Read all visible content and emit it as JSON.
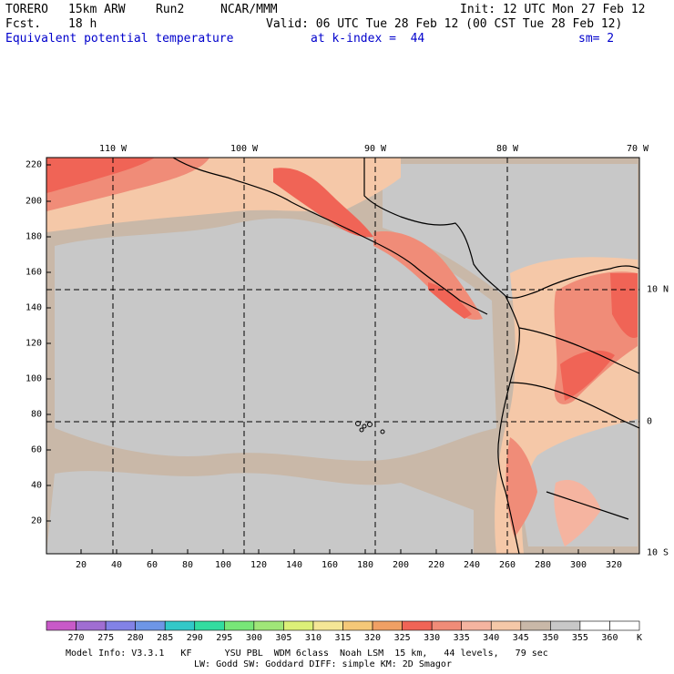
{
  "header": {
    "model_label": "TORERO",
    "resolution": "15km ARW",
    "run": "Run2",
    "org": "NCAR/MMM",
    "init": "Init: 12 UTC Mon 27 Feb 12",
    "fcst_label": "Fcst.",
    "fcst_hours": "18 h",
    "valid": "Valid: 06 UTC Tue 28 Feb 12 (00 CST Tue 28 Feb 12)",
    "field": "Equivalent potential temperature",
    "level": "at k-index =  44",
    "smoothing": "sm= 2"
  },
  "map": {
    "lon_labels": [
      "110 W",
      "100 W",
      "90 W",
      "80 W",
      "70 W"
    ],
    "lat_labels": [
      "10 N",
      "0",
      "10 S"
    ],
    "x_grid_ticks": [
      "20",
      "40",
      "60",
      "80",
      "100",
      "120",
      "140",
      "160",
      "180",
      "200",
      "220",
      "240",
      "260",
      "280",
      "300",
      "320"
    ],
    "y_grid_ticks": [
      "220",
      "200",
      "180",
      "160",
      "140",
      "120",
      "100",
      "80",
      "60",
      "40",
      "20"
    ],
    "colors": {
      "ocean_cool": "#c8c8c8",
      "ocean_warm": "#c9b8a8",
      "land_warm": "#f5c8a8",
      "hot": "#f08c78",
      "hottest": "#f06456"
    }
  },
  "colorbar": {
    "unit": "K",
    "labels": [
      "270",
      "275",
      "280",
      "285",
      "290",
      "295",
      "300",
      "305",
      "310",
      "315",
      "320",
      "325",
      "330",
      "335",
      "340",
      "345",
      "350",
      "355",
      "360"
    ],
    "colors": [
      "#c85ac8",
      "#a06ed2",
      "#8282e6",
      "#6e96e6",
      "#32c8c8",
      "#32dca0",
      "#78e678",
      "#a0e678",
      "#dcf078",
      "#f5e696",
      "#f5c878",
      "#f0a064",
      "#f06456",
      "#f08c78",
      "#f5b4a0",
      "#f5c8a8",
      "#c9b8a8",
      "#c8c8c8",
      "#ffffff"
    ]
  },
  "footer": {
    "line1": "Model Info: V3.3.1   KF      YSU PBL  WDM 6class  Noah LSM  15 km,   44 levels,   79 sec",
    "line2": "LW: Godd SW: Goddard DIFF: simple KM: 2D Smagor"
  }
}
